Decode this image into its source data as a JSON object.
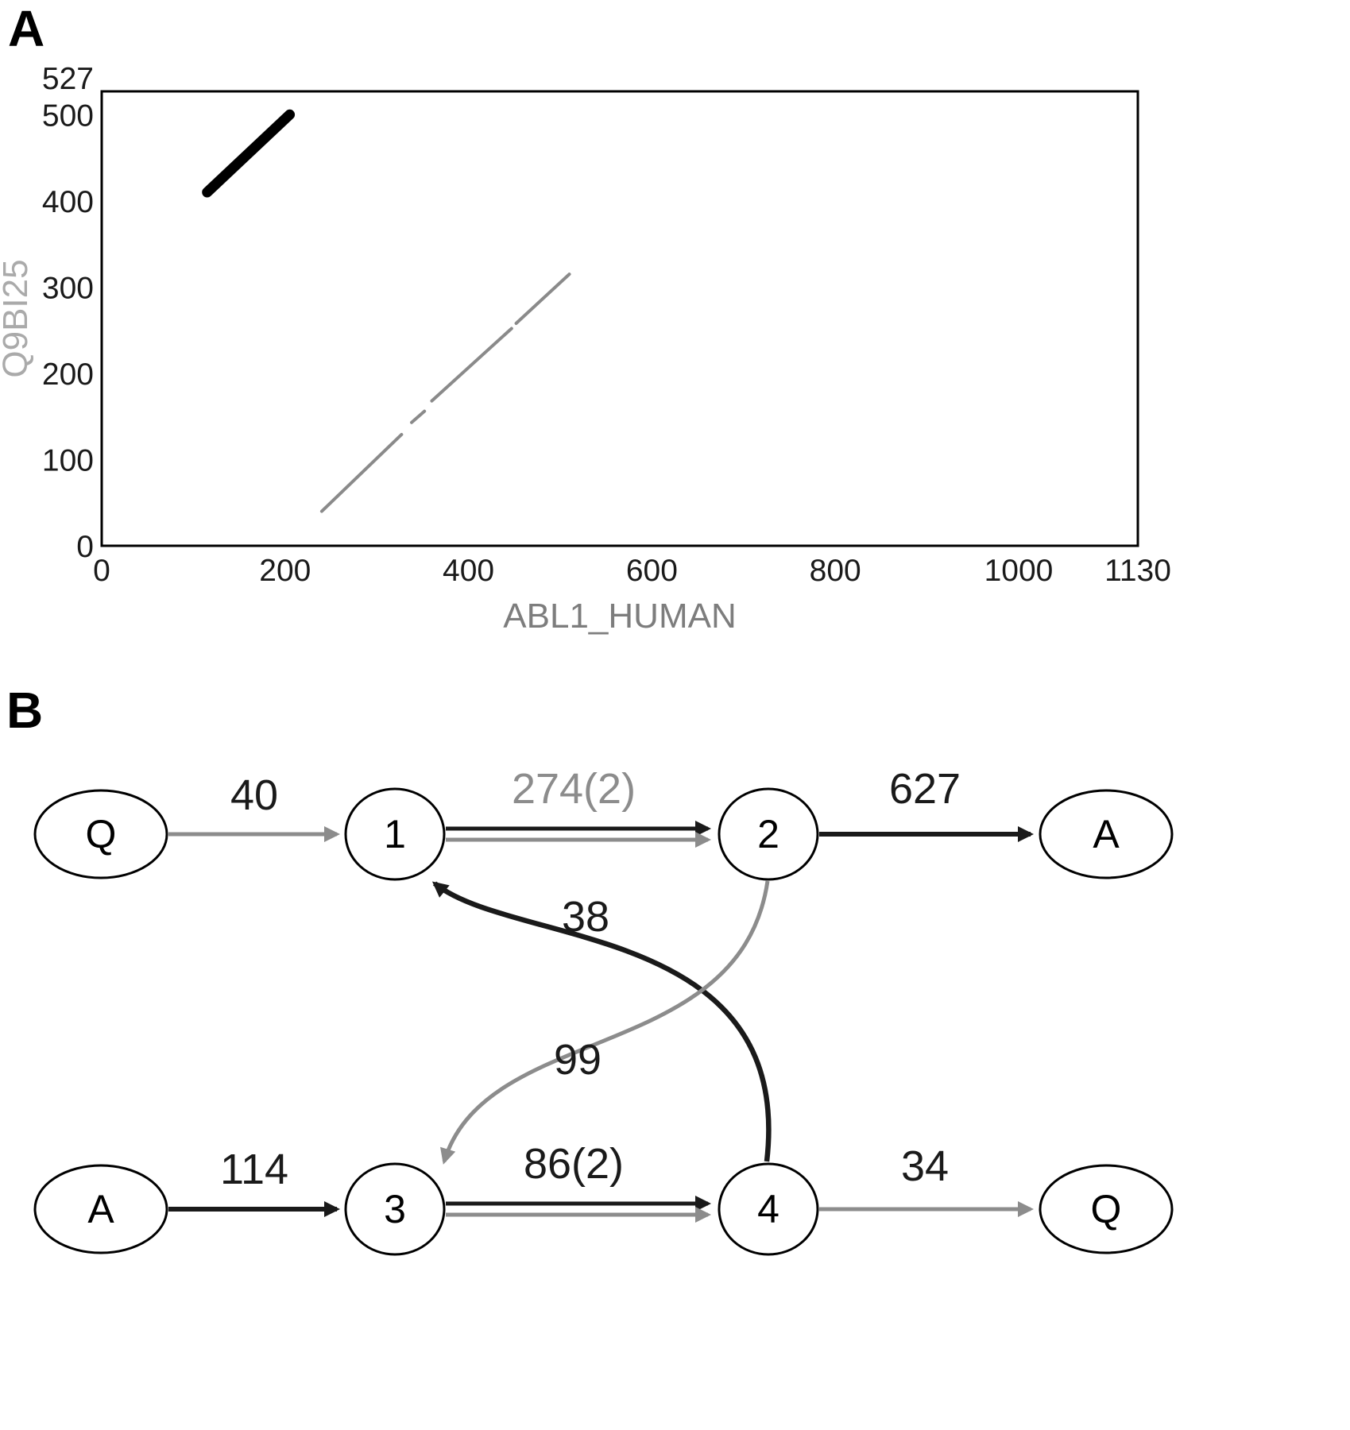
{
  "figure": {
    "colors": {
      "black": "#1a1a1a",
      "gray": "#8c8c8c",
      "light_gray": "#aaaaaa",
      "axis_label_gray": "#7d7d7d"
    },
    "panelA": {
      "label": "A"
    },
    "panelB": {
      "label": "B",
      "graph": {
        "nodes": [
          {
            "id": "Q_top",
            "label": "Q"
          },
          {
            "id": "n1",
            "label": "1"
          },
          {
            "id": "n2",
            "label": "2"
          },
          {
            "id": "A_top",
            "label": "A"
          },
          {
            "id": "A_bottom",
            "label": "A"
          },
          {
            "id": "n3",
            "label": "3"
          },
          {
            "id": "n4",
            "label": "4"
          },
          {
            "id": "Q_bottom",
            "label": "Q"
          }
        ],
        "edges": [
          {
            "from": "Q_top",
            "to": "n1",
            "label": "40",
            "style": "gray",
            "label_color": "black"
          },
          {
            "from": "n1",
            "to": "n2",
            "label": "274(2)",
            "style": "double",
            "label_color": "gray"
          },
          {
            "from": "n2",
            "to": "A_top",
            "label": "627",
            "style": "black",
            "label_color": "black"
          },
          {
            "from": "n4",
            "to": "n1",
            "label": "38",
            "style": "black",
            "label_color": "black"
          },
          {
            "from": "n2",
            "to": "n3",
            "label": "99",
            "style": "gray",
            "label_color": "black"
          },
          {
            "from": "A_bottom",
            "to": "n3",
            "label": "114",
            "style": "black",
            "label_color": "black"
          },
          {
            "from": "n3",
            "to": "n4",
            "label": "86(2)",
            "style": "double",
            "label_color": "black"
          },
          {
            "from": "n4",
            "to": "Q_bottom",
            "label": "34",
            "style": "gray",
            "label_color": "black"
          }
        ]
      }
    }
  },
  "chart_data": {
    "type": "scatter",
    "title": "",
    "xlabel": "ABL1_HUMAN",
    "ylabel": "Q9BI25",
    "xlim": [
      0,
      1130
    ],
    "ylim": [
      0,
      527
    ],
    "grid": false,
    "legend": false,
    "x_ticks": [
      {
        "value": 0,
        "label": "0"
      },
      {
        "value": 200,
        "label": "200"
      },
      {
        "value": 400,
        "label": "400"
      },
      {
        "value": 600,
        "label": "600"
      },
      {
        "value": 800,
        "label": "800"
      },
      {
        "value": 1000,
        "label": "1000"
      },
      {
        "value": 1130,
        "label": "1130"
      }
    ],
    "y_ticks": [
      {
        "value": 0,
        "label": "0"
      },
      {
        "value": 100,
        "label": "100"
      },
      {
        "value": 200,
        "label": "200"
      },
      {
        "value": 300,
        "label": "300"
      },
      {
        "value": 400,
        "label": "400"
      },
      {
        "value": 500,
        "label": "500"
      },
      {
        "value": 527,
        "label": "527"
      }
    ],
    "series": [
      {
        "name": "alignment-black",
        "color": "#000000",
        "stroke_width": 13,
        "segments": [
          [
            [
              115,
              410
            ],
            [
              205,
              500
            ]
          ]
        ]
      },
      {
        "name": "alignment-gray",
        "color": "#8a8a8a",
        "stroke_width": 4,
        "segments": [
          [
            [
              240,
              40
            ],
            [
              327,
              129
            ]
          ],
          [
            [
              338,
              143
            ],
            [
              352,
              156
            ]
          ],
          [
            [
              360,
              168
            ],
            [
              447,
              252
            ]
          ],
          [
            [
              452,
              258
            ],
            [
              510,
              315
            ]
          ]
        ]
      }
    ]
  }
}
